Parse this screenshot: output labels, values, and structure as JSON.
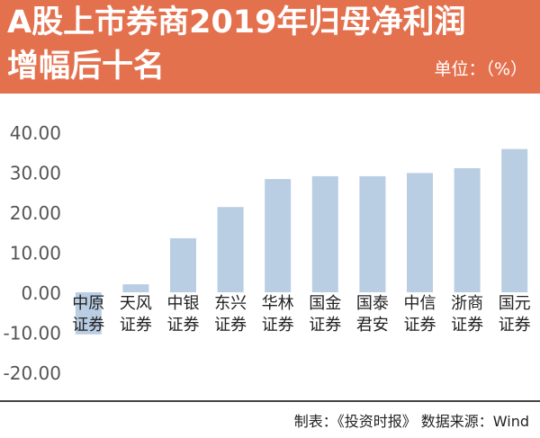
{
  "header": {
    "title_line1": "A股上市券商2019年归母净利润",
    "title_line2": "增幅后十名",
    "unit": "单位：（%）"
  },
  "footer": {
    "source": "制表：《投资时报》 数据来源：Wind"
  },
  "colors": {
    "banner": "#e4714e",
    "bar": "#b9cde3",
    "axis_text": "#555555"
  },
  "chart_data": {
    "type": "bar",
    "categories": [
      "中原证券",
      "天风证券",
      "中银证券",
      "东兴证券",
      "华林证券",
      "国金证券",
      "国泰君安",
      "中信证券",
      "浙商证券",
      "国元证券"
    ],
    "category_lines": [
      [
        "中原",
        "证券"
      ],
      [
        "天风",
        "证券"
      ],
      [
        "中银",
        "证券"
      ],
      [
        "东兴",
        "证券"
      ],
      [
        "华林",
        "证券"
      ],
      [
        "国金",
        "证券"
      ],
      [
        "国泰",
        "君安"
      ],
      [
        "中信",
        "证券"
      ],
      [
        "浙商",
        "证券"
      ],
      [
        "国元",
        "证券"
      ]
    ],
    "values": [
      -10.5,
      2.0,
      13.5,
      21.3,
      28.3,
      29.0,
      29.0,
      29.8,
      31.0,
      35.8
    ],
    "ylim": [
      -20,
      40
    ],
    "yticks": [
      "40.00",
      "30.00",
      "20.00",
      "10.00",
      "0.00",
      "-10.00",
      "-20.00"
    ],
    "grid": false,
    "legend": "none"
  }
}
